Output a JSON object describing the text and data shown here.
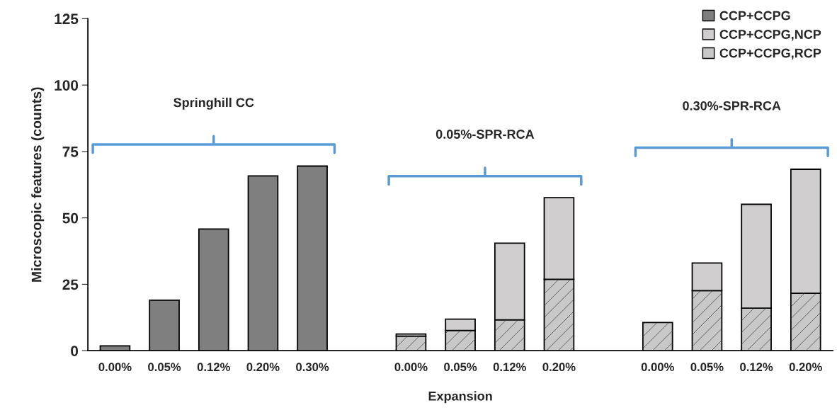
{
  "chart_data": {
    "type": "bar",
    "stacked": true,
    "xlabel": "Expansion",
    "ylabel": "Microscopic features (counts)",
    "categories": [
      "0.00%",
      "0.05%",
      "0.12%",
      "0.20%",
      "0.30%",
      null,
      "0.00%",
      "0.05%",
      "0.12%",
      "0.20%",
      null,
      "0.00%",
      "0.05%",
      "0.12%",
      "0.20%"
    ],
    "series": [
      {
        "name": "CCP+CCPG,RCP",
        "color": "#c8c8c8",
        "values": [
          null,
          null,
          null,
          null,
          null,
          null,
          5.5,
          7.6,
          11.6,
          26.9,
          null,
          10.6,
          22.6,
          16.0,
          21.6
        ]
      },
      {
        "name": "CCP+CCPG,NCP",
        "color": "#d0cece",
        "values": [
          null,
          null,
          null,
          null,
          null,
          null,
          0.8,
          4.3,
          28.9,
          30.7,
          null,
          null,
          10.4,
          39.1,
          46.7
        ]
      },
      {
        "name": "CCP+CCPG",
        "color": "#7f7f7f",
        "values": [
          1.8,
          19.0,
          45.8,
          65.8,
          69.5,
          null,
          null,
          null,
          null,
          null,
          null,
          null,
          null,
          null,
          null
        ]
      }
    ],
    "ylim": [
      0,
      125
    ],
    "yticks": [
      0,
      25,
      50,
      75,
      100,
      125
    ],
    "legend": "top right",
    "annotations": [
      "Springhill CC",
      "0.05%-SPR-RCA",
      "0.30%-SPR-RCA"
    ]
  }
}
